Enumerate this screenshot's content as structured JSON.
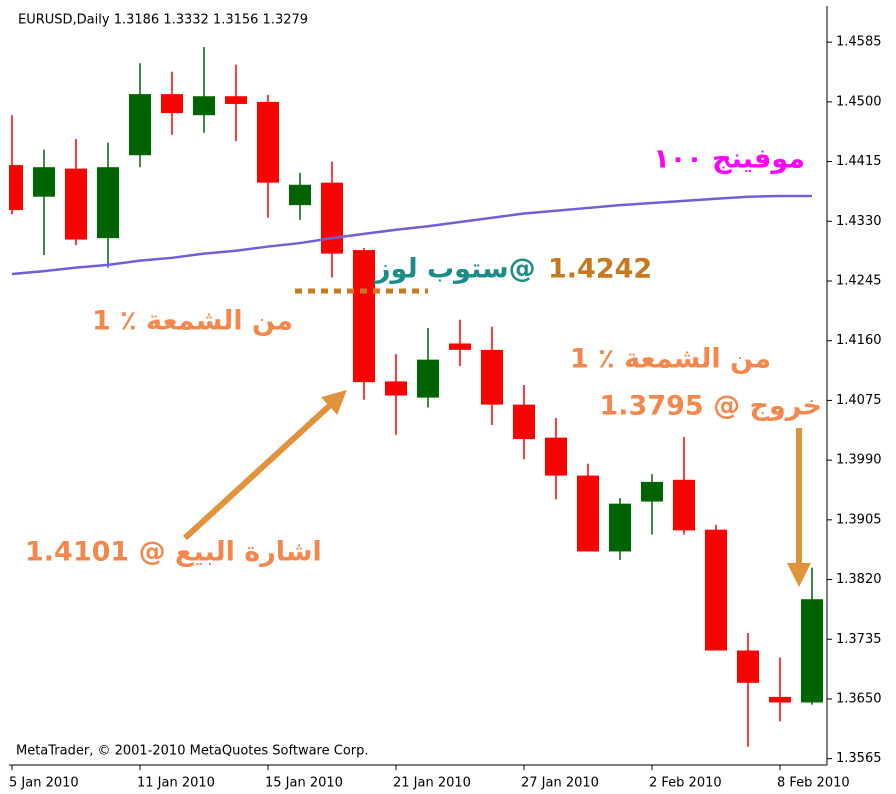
{
  "chart_data": {
    "type": "candlestick",
    "title": "EURUSD,Daily  1.3186 1.3332 1.3156 1.3279",
    "footer": "MetaTrader, © 2001-2010 MetaQuotes Software Corp.",
    "categories": [
      "5 Jan 2010",
      null,
      null,
      null,
      "11 Jan 2010",
      null,
      null,
      null,
      "15 Jan 2010",
      null,
      null,
      null,
      "21 Jan 2010",
      null,
      null,
      null,
      "27 Jan 2010",
      null,
      null,
      null,
      "2 Feb 2010",
      null,
      null,
      null,
      "8 Feb 2010",
      null
    ],
    "open": [
      1.441,
      1.4365,
      1.4405,
      1.4306,
      1.4424,
      1.4511,
      1.4481,
      1.4508,
      1.45,
      1.4353,
      1.4385,
      1.4289,
      1.4102,
      1.4079,
      1.4156,
      1.4147,
      1.4069,
      1.4022,
      1.3968,
      1.386,
      1.3931,
      1.3962,
      1.3891,
      1.3719,
      1.3653,
      1.3645
    ],
    "high": [
      1.4481,
      1.4432,
      1.4447,
      1.4442,
      1.4555,
      1.4543,
      1.4578,
      1.4553,
      1.451,
      1.4399,
      1.4415,
      1.4292,
      1.4141,
      1.4178,
      1.419,
      1.418,
      1.4097,
      1.405,
      1.3985,
      1.3936,
      1.397,
      1.4023,
      1.3898,
      1.3744,
      1.3709,
      1.3837
    ],
    "low": [
      1.434,
      1.4282,
      1.4296,
      1.4264,
      1.4407,
      1.4453,
      1.4456,
      1.4444,
      1.4335,
      1.4332,
      1.425,
      1.4076,
      1.4026,
      1.4065,
      1.4124,
      1.404,
      1.3991,
      1.3934,
      1.386,
      1.3848,
      1.3884,
      1.3884,
      1.3719,
      1.3582,
      1.3618,
      1.3642
    ],
    "close": [
      1.4346,
      1.4407,
      1.4304,
      1.4407,
      1.4511,
      1.4484,
      1.4508,
      1.4497,
      1.4385,
      1.4382,
      1.4284,
      1.4101,
      1.4082,
      1.4133,
      1.4147,
      1.4069,
      1.402,
      1.3968,
      1.386,
      1.3928,
      1.3959,
      1.389,
      1.3719,
      1.3673,
      1.3645,
      1.3792
    ],
    "up_color": "#006400",
    "down_color": "#ff0000",
    "moving_average": {
      "color": "#7060d8",
      "values": [
        1.4255,
        1.4259,
        1.4264,
        1.4268,
        1.4274,
        1.4278,
        1.4284,
        1.4288,
        1.4294,
        1.4299,
        1.4306,
        1.4312,
        1.4318,
        1.4323,
        1.4329,
        1.4335,
        1.4341,
        1.4345,
        1.4349,
        1.4353,
        1.4356,
        1.4359,
        1.4362,
        1.4365,
        1.4366,
        1.4366
      ]
    },
    "ylim": [
      1.3556,
      1.4645
    ],
    "yticks": [
      1.4585,
      {
        "value": 1.45,
        "label": "1.4500"
      },
      1.4415,
      {
        "value": 1.433,
        "label": "1.4330"
      },
      1.4245,
      {
        "value": 1.416,
        "label": "1.4160"
      },
      1.4075,
      {
        "value": 1.399,
        "label": "1.3990"
      },
      1.3905,
      {
        "value": 1.382,
        "label": "1.3820"
      },
      1.3735,
      {
        "value": 1.365,
        "label": "1.3650"
      },
      1.3565
    ],
    "annotations": [
      {
        "text": "موفينج ١٠٠",
        "color": "#ff00ff"
      },
      {
        "text": "ستوب لوز@",
        "color": "#1a8c8c"
      },
      {
        "text": "1.4242",
        "color": "#c8781e"
      },
      {
        "text": "1 ٪ من الشمعة",
        "color": "#f4874b"
      },
      {
        "text": "1 ٪ من الشمعة",
        "color": "#f4874b"
      },
      {
        "text": "خروج @ 1.3795",
        "color": "#f4874b"
      },
      {
        "text": "اشارة البيع @ 1.4101",
        "color": "#f4874b"
      }
    ]
  }
}
